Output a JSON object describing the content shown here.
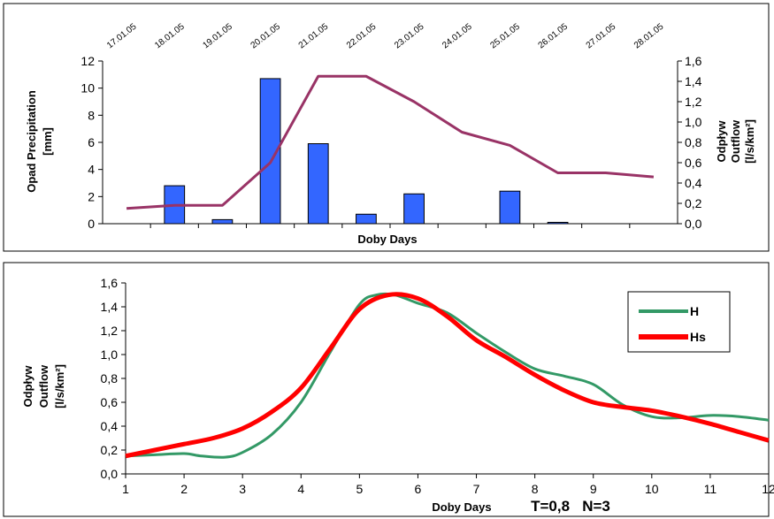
{
  "chart_data": [
    {
      "type": "bar",
      "categories": [
        "17.01.05",
        "18.01.05",
        "19.01.05",
        "20.01.05",
        "21.01.05",
        "22.01.05",
        "23.01.05",
        "24.01.05",
        "25.01.05",
        "26.01.05",
        "27.01.05",
        "28.01.05"
      ],
      "xlabel": "Doby   Days",
      "ylabel_left": "Opad  Precipitation",
      "ylabel_left_unit": "[mm]",
      "ylabel_right_1": "Odpływ",
      "ylabel_right_2": "Outflow",
      "ylabel_right_unit": "[l/s/km²]",
      "ylim_left": [
        0,
        12
      ],
      "yticks_left": [
        "0",
        "2",
        "4",
        "6",
        "8",
        "10",
        "12"
      ],
      "ylim_right": [
        0,
        1.6
      ],
      "yticks_right": [
        "0,0",
        "0,2",
        "0,4",
        "0,6",
        "0,8",
        "1,0",
        "1,2",
        "1,4",
        "1,6"
      ],
      "series": [
        {
          "values": [
            0,
            2.8,
            0.3,
            10.7,
            5.9,
            0.7,
            2.2,
            0,
            2.4,
            0.1,
            0,
            0
          ],
          "axis": "left",
          "color": "#3366ff"
        },
        {
          "values": [
            0.15,
            0.18,
            0.18,
            0.6,
            1.45,
            1.45,
            1.2,
            0.9,
            0.77,
            0.5,
            0.5,
            0.46
          ],
          "axis": "right",
          "color": "#993366"
        }
      ],
      "grid": false
    },
    {
      "type": "line",
      "xlabel": "Doby Days",
      "annotation": "T=0,8   N=3",
      "ylabel_1": "Odpływ",
      "ylabel_2": "Outflow",
      "ylabel_unit": "[l/s/km²]",
      "xlim": [
        1,
        12
      ],
      "ylim": [
        0,
        1.6
      ],
      "xticks": [
        "1",
        "2",
        "3",
        "4",
        "5",
        "6",
        "7",
        "8",
        "9",
        "10",
        "11",
        "12"
      ],
      "yticks": [
        "0,0",
        "0,2",
        "0,4",
        "0,6",
        "0,8",
        "1,0",
        "1,2",
        "1,4",
        "1,6"
      ],
      "legend_position": "top-right",
      "series": [
        {
          "name": "H",
          "color": "#339966",
          "x": [
            1,
            1.5,
            2,
            2.3,
            2.7,
            3,
            3.5,
            4,
            4.5,
            5,
            5.3,
            5.6,
            6,
            6.5,
            7,
            7.5,
            8,
            8.5,
            9,
            9.5,
            10,
            10.5,
            11,
            11.5,
            12
          ],
          "y": [
            0.15,
            0.16,
            0.17,
            0.15,
            0.14,
            0.18,
            0.33,
            0.6,
            1.02,
            1.42,
            1.5,
            1.5,
            1.43,
            1.35,
            1.18,
            1.02,
            0.88,
            0.82,
            0.75,
            0.58,
            0.48,
            0.47,
            0.49,
            0.48,
            0.45
          ]
        },
        {
          "name": "Hs",
          "color": "#ff0000",
          "x": [
            1,
            1.5,
            2,
            2.5,
            3,
            3.5,
            4,
            4.5,
            5,
            5.5,
            6,
            6.5,
            7,
            7.5,
            8,
            8.5,
            9,
            9.5,
            10,
            10.5,
            11,
            11.5,
            12
          ],
          "y": [
            0.15,
            0.2,
            0.25,
            0.3,
            0.38,
            0.52,
            0.72,
            1.05,
            1.38,
            1.5,
            1.47,
            1.32,
            1.12,
            0.98,
            0.83,
            0.7,
            0.6,
            0.56,
            0.53,
            0.48,
            0.42,
            0.35,
            0.28
          ]
        }
      ],
      "grid": false
    }
  ]
}
